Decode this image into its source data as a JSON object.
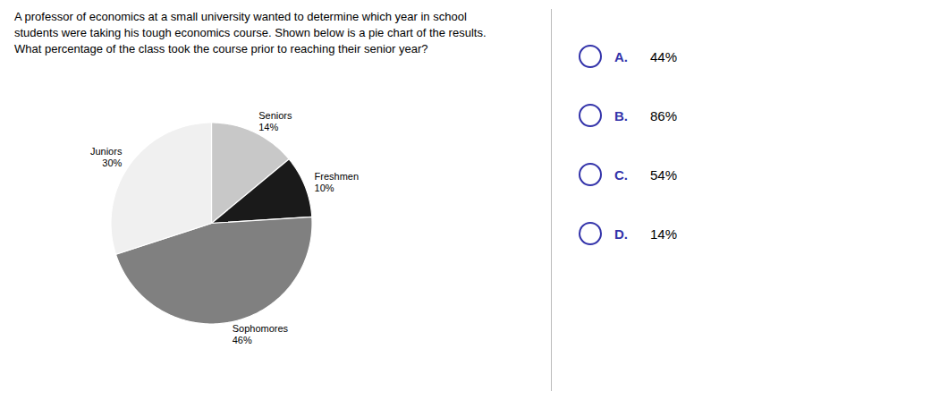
{
  "chart_data": {
    "type": "pie",
    "title": "A professor of economics at a small university wanted to determine which year in school\nstudents were taking his tough economics course. Shown below is a pie chart of the results.\nWhat percentage of the class took the course prior to reaching their senior year?",
    "categories": [
      "Seniors",
      "Freshmen",
      "Sophomores",
      "Juniors"
    ],
    "values": [
      14,
      10,
      46,
      30
    ],
    "value_labels": [
      "14%",
      "10%",
      "46%",
      "30%"
    ],
    "colors": [
      "#c8c8c8",
      "#1a1a1a",
      "#808080",
      "#f0f0f0"
    ],
    "data_labels": true,
    "annotations": [
      {
        "letter": "A.",
        "text": "44%"
      },
      {
        "letter": "B.",
        "text": "86%"
      },
      {
        "letter": "C.",
        "text": "54%"
      },
      {
        "letter": "D.",
        "text": "14%"
      }
    ]
  }
}
